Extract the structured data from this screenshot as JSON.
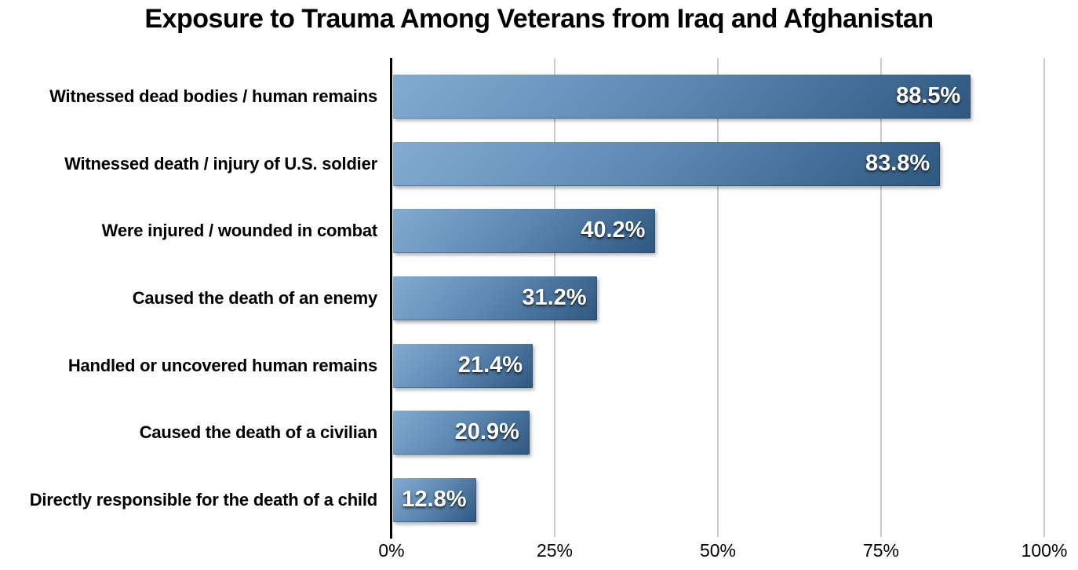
{
  "chart_data": {
    "type": "bar",
    "orientation": "horizontal",
    "title": "Exposure to Trauma Among Veterans from Iraq and Afghanistan",
    "categories": [
      "Witnessed dead bodies / human remains",
      "Witnessed death / injury of U.S. soldier",
      "Were injured / wounded in combat",
      "Caused the death of an enemy",
      "Handled or uncovered human remains",
      "Caused the death of a civilian",
      "Directly responsible for the death of a child"
    ],
    "values": [
      88.5,
      83.8,
      40.2,
      31.2,
      21.4,
      20.9,
      12.8
    ],
    "value_labels": [
      "88.5%",
      "83.8%",
      "40.2%",
      "31.2%",
      "21.4%",
      "20.9%",
      "12.8%"
    ],
    "xlabel": "",
    "ylabel": "",
    "xlim": [
      0,
      100
    ],
    "xticks": [
      {
        "value": 0,
        "label": "0%"
      },
      {
        "value": 25,
        "label": "25%"
      },
      {
        "value": 50,
        "label": "50%"
      },
      {
        "value": 75,
        "label": "75%"
      },
      {
        "value": 100,
        "label": "100%"
      }
    ],
    "grid": "vertical-gridlines-behind-bars",
    "legend": "none",
    "colors": {
      "bar_gradient_light": "#83abd0",
      "bar_gradient_mid": "#5c88b1",
      "bar_gradient_dark": "#2f5880",
      "bar_value_text": "#ffffff",
      "gridline": "#cbcbcb",
      "axis": "#000000",
      "text": "#000000",
      "background": "#ffffff"
    }
  }
}
